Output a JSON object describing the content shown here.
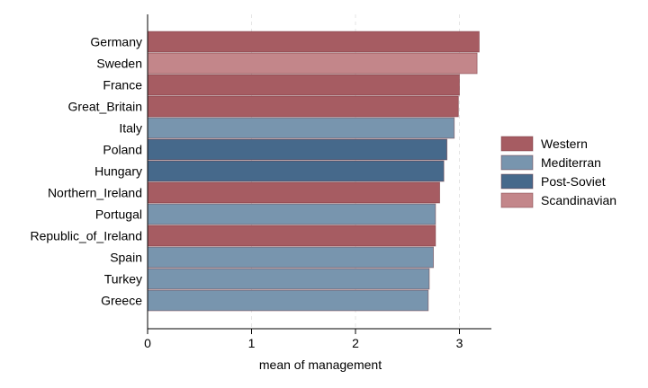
{
  "chart_data": {
    "type": "bar",
    "orientation": "horizontal",
    "title": "",
    "xlabel": "mean of management",
    "ylabel": "",
    "xlim": [
      0,
      3.3
    ],
    "xticks": [
      0,
      1,
      2,
      3
    ],
    "grid": "vertical dashed",
    "legend_position": "right",
    "categories": [
      "Germany",
      "Sweden",
      "France",
      "Great_Britain",
      "Italy",
      "Poland",
      "Hungary",
      "Northern_Ireland",
      "Portugal",
      "Republic_of_Ireland",
      "Spain",
      "Turkey",
      "Greece"
    ],
    "values": [
      3.19,
      3.17,
      3.0,
      2.99,
      2.95,
      2.88,
      2.85,
      2.81,
      2.77,
      2.77,
      2.75,
      2.71,
      2.7
    ],
    "groups": [
      "Western",
      "Scandinavian",
      "Western",
      "Western",
      "Mediterran",
      "Post-Soviet",
      "Post-Soviet",
      "Western",
      "Mediterran",
      "Western",
      "Mediterran",
      "Mediterran",
      "Mediterran"
    ],
    "legend": [
      {
        "name": "Western",
        "color": "#a65c62"
      },
      {
        "name": "Mediterran",
        "color": "#7895ae"
      },
      {
        "name": "Post-Soviet",
        "color": "#46698b"
      },
      {
        "name": "Scandinavian",
        "color": "#c3868a"
      }
    ]
  }
}
